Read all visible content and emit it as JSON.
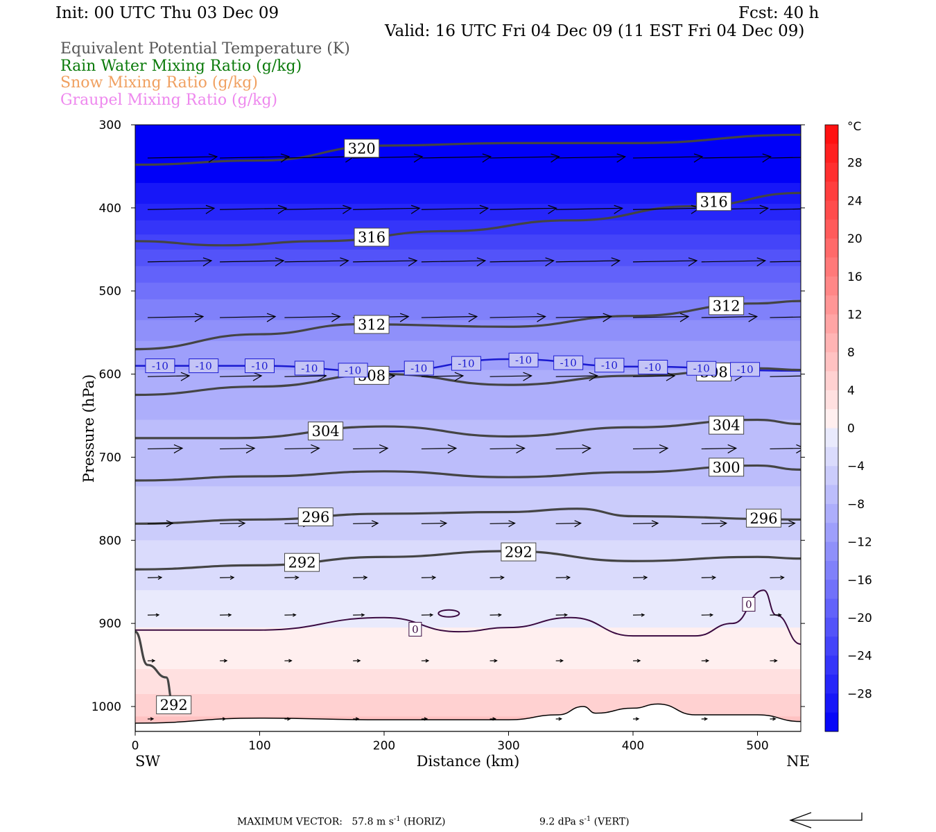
{
  "header": {
    "init": "Init: 00 UTC Thu 03 Dec 09",
    "fcst": "Fcst:   40 h",
    "valid": "Valid: 16 UTC Fri 04 Dec 09 (11 EST Fri 04 Dec 09)"
  },
  "legend": [
    {
      "label": "Equivalent Potential Temperature (K)",
      "color": "#555555"
    },
    {
      "label": "Rain Water Mixing Ratio (g/kg)",
      "color": "#0a7a0a"
    },
    {
      "label": "Snow Mixing Ratio (g/kg)",
      "color": "#f0a060"
    },
    {
      "label": "Graupel Mixing Ratio (g/kg)",
      "color": "#ee88ee"
    }
  ],
  "footer": {
    "max_vector_label": "MAXIMUM VECTOR:",
    "horiz_value": "57.8 m s",
    "horiz_exp": "-1",
    "horiz_suffix": "(HORIZ)",
    "vert_value": "9.2 dPa s",
    "vert_exp": "-1",
    "vert_suffix": "(VERT)"
  },
  "chart_data": {
    "type": "cross-section",
    "xlabel": "Distance (km)",
    "ylabel": "Pressure (hPa)",
    "xlim": [
      0,
      535
    ],
    "ylim": [
      1030,
      300
    ],
    "x_ticks": [
      0,
      100,
      200,
      300,
      400,
      500
    ],
    "y_ticks": [
      300,
      400,
      500,
      600,
      700,
      800,
      900,
      1000
    ],
    "x_endpoints": {
      "left": "SW",
      "right": "NE"
    },
    "colorbar": {
      "unit": "°C",
      "labels": [
        28,
        24,
        20,
        16,
        12,
        8,
        4,
        0,
        -4,
        -8,
        -12,
        -16,
        -20,
        -24,
        -28
      ],
      "range": [
        -32,
        32
      ],
      "step": 2
    },
    "temperature_band_tops": [
      {
        "t": 6,
        "p": 1012
      },
      {
        "t": 4,
        "p": 985
      },
      {
        "t": 2,
        "p": 955
      },
      {
        "t": 0,
        "p": 905
      },
      {
        "t": -2,
        "p": 860
      },
      {
        "t": -4,
        "p": 800
      },
      {
        "t": -6,
        "p": 735
      },
      {
        "t": -8,
        "p": 655
      },
      {
        "t": -10,
        "p": 595
      },
      {
        "t": -12,
        "p": 560
      },
      {
        "t": -14,
        "p": 535
      },
      {
        "t": -16,
        "p": 510
      },
      {
        "t": -18,
        "p": 490
      },
      {
        "t": -20,
        "p": 470
      },
      {
        "t": -22,
        "p": 450
      },
      {
        "t": -24,
        "p": 432
      },
      {
        "t": -26,
        "p": 415
      },
      {
        "t": -28,
        "p": 395
      },
      {
        "t": -30,
        "p": 370
      }
    ],
    "theta_e_contours": [
      {
        "value": 320,
        "x": [
          0,
          100,
          200,
          300,
          400,
          535
        ],
        "p": [
          348,
          343,
          325,
          322,
          322,
          312
        ],
        "label_x": 182
      },
      {
        "value": 316,
        "x": [
          0,
          70,
          150,
          250,
          350,
          450,
          535
        ],
        "p": [
          440,
          445,
          440,
          428,
          415,
          398,
          382
        ],
        "label_x": 190
      },
      {
        "value": 316,
        "x": [
          400,
          535
        ],
        "p": [
          402,
          382
        ],
        "label_x": 465,
        "label_only": true
      },
      {
        "value": 312,
        "x": [
          0,
          100,
          180,
          300,
          400,
          500,
          535
        ],
        "p": [
          570,
          552,
          540,
          543,
          530,
          515,
          512
        ],
        "label_x": 190
      },
      {
        "value": 312,
        "x": [
          450,
          535
        ],
        "p": [
          520,
          512
        ],
        "label_x": 475,
        "label_only": true
      },
      {
        "value": 308,
        "x": [
          0,
          100,
          200,
          300,
          400,
          500,
          535
        ],
        "p": [
          625,
          615,
          600,
          613,
          602,
          593,
          595
        ],
        "label_x": 190
      },
      {
        "value": 308,
        "x": [
          450,
          535
        ],
        "p": [
          598,
          595
        ],
        "label_x": 465,
        "label_only": true
      },
      {
        "value": 304,
        "x": [
          0,
          80,
          200,
          300,
          400,
          500,
          535
        ],
        "p": [
          677,
          677,
          663,
          675,
          664,
          655,
          660
        ],
        "label_x": 153
      },
      {
        "value": 304,
        "x": [
          450,
          535
        ],
        "p": [
          662,
          660
        ],
        "label_x": 475,
        "label_only": true
      },
      {
        "value": 300,
        "x": [
          0,
          100,
          200,
          300,
          400,
          500,
          535
        ],
        "p": [
          728,
          723,
          717,
          724,
          718,
          710,
          715
        ],
        "label_x": 475
      },
      {
        "value": 296,
        "x": [
          0,
          100,
          200,
          300,
          355,
          400,
          535
        ],
        "p": [
          780,
          775,
          768,
          766,
          762,
          771,
          775
        ],
        "label_x": 145
      },
      {
        "value": 296,
        "x": [
          500,
          535
        ],
        "p": [
          773,
          775
        ],
        "label_x": 505,
        "label_only": true
      },
      {
        "value": 292,
        "x": [
          0,
          100,
          200,
          300,
          400,
          500,
          535
        ],
        "p": [
          835,
          830,
          820,
          813,
          825,
          820,
          822
        ],
        "label_x": 134
      },
      {
        "value": 292,
        "x": [
          300,
          400
        ],
        "p": [
          813,
          825
        ],
        "label_x": 308,
        "label_only": true
      },
      {
        "value": 292,
        "x": [
          0,
          10,
          25,
          30
        ],
        "p": [
          910,
          950,
          965,
          995
        ],
        "label_x": 31,
        "label_p": 998,
        "label_only": false
      }
    ],
    "freezing_line": {
      "value": 0,
      "x": [
        0,
        100,
        200,
        260,
        300,
        350,
        400,
        450,
        480,
        505,
        515,
        535
      ],
      "p": [
        908,
        908,
        893,
        910,
        905,
        893,
        915,
        915,
        900,
        860,
        890,
        925
      ],
      "labels": [
        {
          "x": 225,
          "p": 907
        },
        {
          "x": 493,
          "p": 877
        }
      ]
    },
    "minus10_isotherm": {
      "value": -10,
      "x": [
        0,
        100,
        200,
        300,
        400,
        535
      ],
      "p": [
        590,
        590,
        597,
        582,
        591,
        596
      ],
      "label_x": [
        20,
        55,
        100,
        140,
        175,
        228,
        266,
        312,
        348,
        381,
        416,
        455,
        490
      ]
    },
    "terrain": {
      "x": [
        0,
        100,
        200,
        300,
        340,
        360,
        370,
        400,
        420,
        450,
        500,
        535
      ],
      "p": [
        1020,
        1014,
        1016,
        1016,
        1010,
        1000,
        1008,
        1002,
        997,
        1010,
        1010,
        1018
      ]
    },
    "wind_vectors": {
      "levels": [
        {
          "p": 340,
          "u": 50
        },
        {
          "p": 402,
          "u": 48
        },
        {
          "p": 465,
          "u": 46
        },
        {
          "p": 532,
          "u": 40
        },
        {
          "p": 603,
          "u": 30
        },
        {
          "p": 690,
          "u": 25
        },
        {
          "p": 780,
          "u": 18
        },
        {
          "p": 845,
          "u": 10
        },
        {
          "p": 890,
          "u": 8
        },
        {
          "p": 945,
          "u": 5
        },
        {
          "p": 1015,
          "u": 4
        }
      ],
      "x": [
        10,
        68,
        120,
        175,
        230,
        285,
        338,
        400,
        455,
        510
      ]
    }
  }
}
